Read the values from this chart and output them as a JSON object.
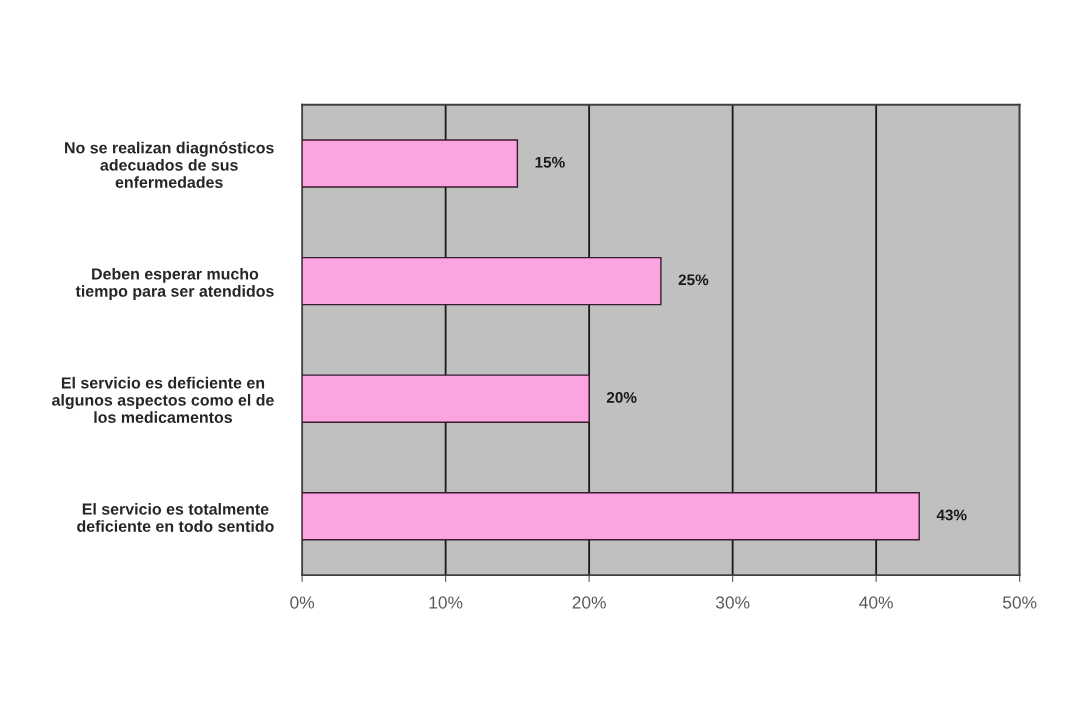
{
  "chart_data": {
    "type": "bar",
    "orientation": "horizontal",
    "categories": [
      "No se realizan diagnósticos\nadecuados de sus\nenfermedades",
      "Deben esperar mucho\ntiempo para ser atendidos",
      "El servicio es deficiente en\nalgunos aspectos como el de\nlos medicamentos",
      "El servicio es totalmente\ndeficiente en todo sentido"
    ],
    "values": [
      15,
      25,
      20,
      43
    ],
    "value_labels": [
      "15%",
      "25%",
      "20%",
      "43%"
    ],
    "color": "#fba4e0",
    "xlim": [
      0,
      50
    ],
    "xticks": [
      {
        "value": 0,
        "label": "0%"
      },
      {
        "value": 10,
        "label": "10%"
      },
      {
        "value": 20,
        "label": "20%"
      },
      {
        "value": 30,
        "label": "30%"
      },
      {
        "value": 40,
        "label": "40%"
      },
      {
        "value": 50,
        "label": "50%"
      }
    ],
    "grid": "x"
  }
}
